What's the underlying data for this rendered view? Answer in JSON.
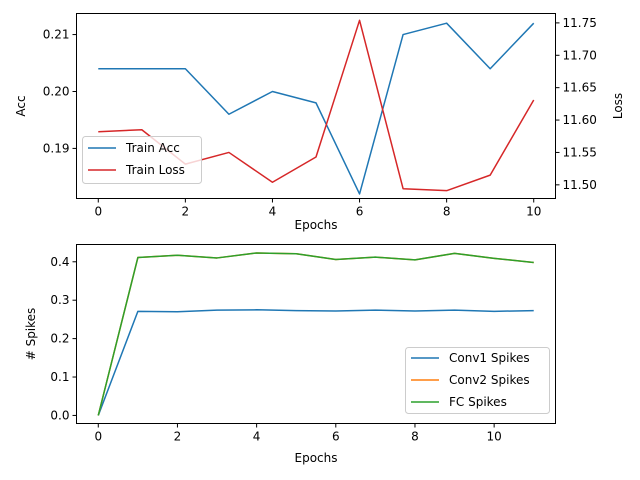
{
  "chart_data": [
    {
      "type": "line",
      "xlabel": "Epochs",
      "ylabel_left": "Acc",
      "ylabel_right": "Loss",
      "xlim": [
        -0.5,
        10.5
      ],
      "ylim_left": [
        0.1812,
        0.2137
      ],
      "ylim_right": [
        11.4789,
        11.7645
      ],
      "xticks": [
        0,
        2,
        4,
        6,
        8,
        10
      ],
      "yticks_left": [
        0.19,
        0.2,
        0.21
      ],
      "yticks_left_labels": [
        "0.19",
        "0.20",
        "0.21"
      ],
      "yticks_right": [
        11.5,
        11.55,
        11.6,
        11.65,
        11.7,
        11.75
      ],
      "yticks_right_labels": [
        "11.50",
        "11.55",
        "11.60",
        "11.65",
        "11.70",
        "11.75"
      ],
      "grid": false,
      "legend_position": "lower-left",
      "series": [
        {
          "name": "Train Acc",
          "axis": "left",
          "color": "#1f77b4",
          "x": [
            0,
            1,
            2,
            3,
            4,
            5,
            6,
            7,
            8,
            9,
            10
          ],
          "values": [
            0.204,
            0.204,
            0.204,
            0.196,
            0.2,
            0.198,
            0.182,
            0.21,
            0.212,
            0.204,
            0.212
          ]
        },
        {
          "name": "Train Loss",
          "axis": "right",
          "color": "#d62728",
          "x": [
            0,
            1,
            2,
            3,
            4,
            5,
            6,
            7,
            8,
            9,
            10
          ],
          "values": [
            11.582,
            11.585,
            11.532,
            11.55,
            11.504,
            11.543,
            11.754,
            11.494,
            11.491,
            11.515,
            11.631
          ]
        }
      ]
    },
    {
      "type": "line",
      "xlabel": "Epochs",
      "ylabel": "# Spikes",
      "xlim": [
        -0.55,
        11.55
      ],
      "ylim": [
        -0.021,
        0.445
      ],
      "xticks": [
        0,
        2,
        4,
        6,
        8,
        10
      ],
      "yticks": [
        0.0,
        0.1,
        0.2,
        0.3,
        0.4
      ],
      "yticks_labels": [
        "0.0",
        "0.1",
        "0.2",
        "0.3",
        "0.4"
      ],
      "grid": false,
      "legend_position": "lower-right",
      "series": [
        {
          "name": "Conv1 Spikes",
          "color": "#1f77b4",
          "x": [
            0,
            1,
            2,
            3,
            4,
            5,
            6,
            7,
            8,
            9,
            10,
            11
          ],
          "values": [
            0.0,
            0.271,
            0.27,
            0.274,
            0.275,
            0.273,
            0.272,
            0.274,
            0.272,
            0.274,
            0.271,
            0.273
          ]
        },
        {
          "name": "Conv2 Spikes",
          "color": "#ff7f0e",
          "x": [
            0,
            1,
            2,
            3,
            4,
            5,
            6,
            7,
            8,
            9,
            10,
            11
          ],
          "values": [
            0.0,
            0.411,
            0.417,
            0.41,
            0.423,
            0.421,
            0.406,
            0.412,
            0.405,
            0.422,
            0.409,
            0.398
          ]
        },
        {
          "name": "FC Spikes",
          "color": "#2ca02c",
          "x": [
            0,
            1,
            2,
            3,
            4,
            5,
            6,
            7,
            8,
            9,
            10,
            11
          ],
          "values": [
            0.0,
            0.411,
            0.417,
            0.41,
            0.423,
            0.421,
            0.406,
            0.412,
            0.405,
            0.422,
            0.409,
            0.398
          ]
        }
      ]
    }
  ]
}
